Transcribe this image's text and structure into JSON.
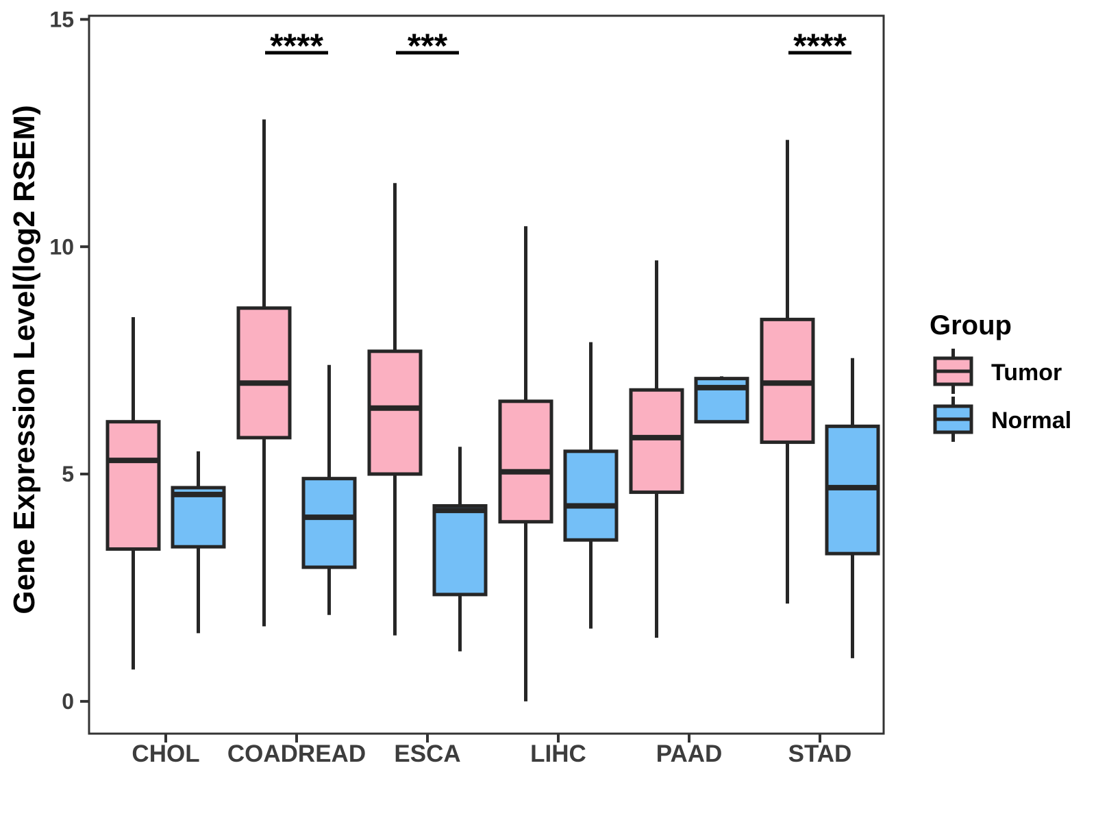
{
  "legend": {
    "title": "Group",
    "items": [
      {
        "label": "Tumor",
        "color": "#FBB0C1",
        "icon": "tumor-boxplot-swatch-icon"
      },
      {
        "label": "Normal",
        "color": "#74BFF7",
        "icon": "normal-boxplot-swatch-icon"
      }
    ]
  },
  "colors": {
    "tumor_fill": "#FBB0C1",
    "normal_fill": "#74BFF7",
    "box_stroke": "#262626",
    "panel_border": "#333333",
    "tick_text": "#3d3d3d",
    "annotation": "#000000"
  },
  "chart_data": {
    "type": "boxplot",
    "title": "",
    "xlabel": "",
    "ylabel": "Gene Expression Level(log2 RSEM)",
    "categories": [
      "CHOL",
      "COADREAD",
      "ESCA",
      "LIHC",
      "PAAD",
      "STAD"
    ],
    "y_ticks": [
      0,
      5,
      10,
      15
    ],
    "ylim": [
      -0.71,
      15.08
    ],
    "grid": "off",
    "legend_position": "right",
    "series": [
      {
        "name": "Tumor",
        "color": "#FBB0C1",
        "boxes": [
          {
            "category": "CHOL",
            "whisker_low": 0.7,
            "q1": 3.35,
            "median": 5.3,
            "q3": 6.15,
            "whisker_high": 8.45
          },
          {
            "category": "COADREAD",
            "whisker_low": 1.65,
            "q1": 5.8,
            "median": 7.0,
            "q3": 8.65,
            "whisker_high": 12.8
          },
          {
            "category": "ESCA",
            "whisker_low": 1.45,
            "q1": 5.0,
            "median": 6.45,
            "q3": 7.7,
            "whisker_high": 11.4
          },
          {
            "category": "LIHC",
            "whisker_low": 0.0,
            "q1": 3.95,
            "median": 5.05,
            "q3": 6.6,
            "whisker_high": 10.45
          },
          {
            "category": "PAAD",
            "whisker_low": 1.4,
            "q1": 4.6,
            "median": 5.8,
            "q3": 6.85,
            "whisker_high": 9.7
          },
          {
            "category": "STAD",
            "whisker_low": 2.15,
            "q1": 5.7,
            "median": 7.0,
            "q3": 8.4,
            "whisker_high": 12.35
          }
        ]
      },
      {
        "name": "Normal",
        "color": "#74BFF7",
        "boxes": [
          {
            "category": "CHOL",
            "whisker_low": 1.5,
            "q1": 3.4,
            "median": 4.55,
            "q3": 4.7,
            "whisker_high": 5.5
          },
          {
            "category": "COADREAD",
            "whisker_low": 1.9,
            "q1": 2.95,
            "median": 4.05,
            "q3": 4.9,
            "whisker_high": 7.4
          },
          {
            "category": "ESCA",
            "whisker_low": 1.1,
            "q1": 2.35,
            "median": 4.2,
            "q3": 4.3,
            "whisker_high": 5.6
          },
          {
            "category": "LIHC",
            "whisker_low": 1.6,
            "q1": 3.55,
            "median": 4.3,
            "q3": 5.5,
            "whisker_high": 7.9
          },
          {
            "category": "PAAD",
            "whisker_low": 6.15,
            "q1": 6.15,
            "median": 6.9,
            "q3": 7.1,
            "whisker_high": 7.15
          },
          {
            "category": "STAD",
            "whisker_low": 0.95,
            "q1": 3.25,
            "median": 4.7,
            "q3": 6.05,
            "whisker_high": 7.55
          }
        ]
      }
    ],
    "significance": [
      {
        "category": "COADREAD",
        "label": "****"
      },
      {
        "category": "ESCA",
        "label": "***"
      },
      {
        "category": "STAD",
        "label": "****"
      }
    ]
  }
}
